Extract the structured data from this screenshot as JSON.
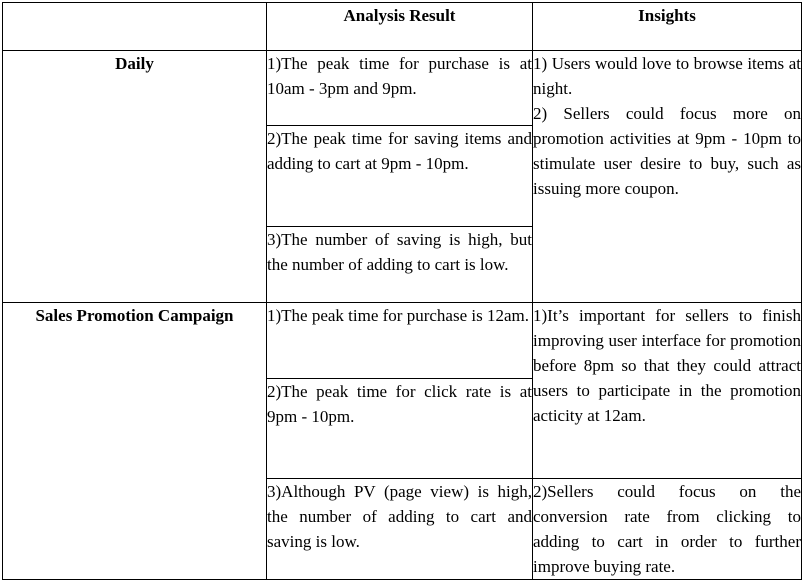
{
  "header": {
    "corner": "",
    "analysis": "Analysis Result",
    "insights": "Insights"
  },
  "daily": {
    "label": "Daily",
    "results": [
      "1)The peak time for purchase is at 10am - 3pm and 9pm.",
      "2)The peak time for saving items and adding to cart at 9pm - 10pm.",
      "3)The number of saving is high, but the number of adding to cart is low."
    ],
    "insights": [
      "1) Users would love to browse items at night.",
      "2) Sellers could focus more on promotion activities at 9pm - 10pm to stimulate user desire to buy, such as issuing more coupon."
    ]
  },
  "campaign": {
    "label": "Sales Promotion Campaign",
    "results": [
      "1)The peak time for purchase is 12am.",
      "2)The peak time for click rate is at 9pm - 10pm.",
      "3)Although PV (page view) is high, the number of adding to cart and saving is low."
    ],
    "insights": [
      "1)It’s important for sellers to finish improving user interface for promotion before 8pm so that they could attract users to participate in the promotion acticity at 12am.",
      "2)Sellers could focus on the conversion rate from clicking to adding to cart in order to further improve buying rate."
    ]
  }
}
